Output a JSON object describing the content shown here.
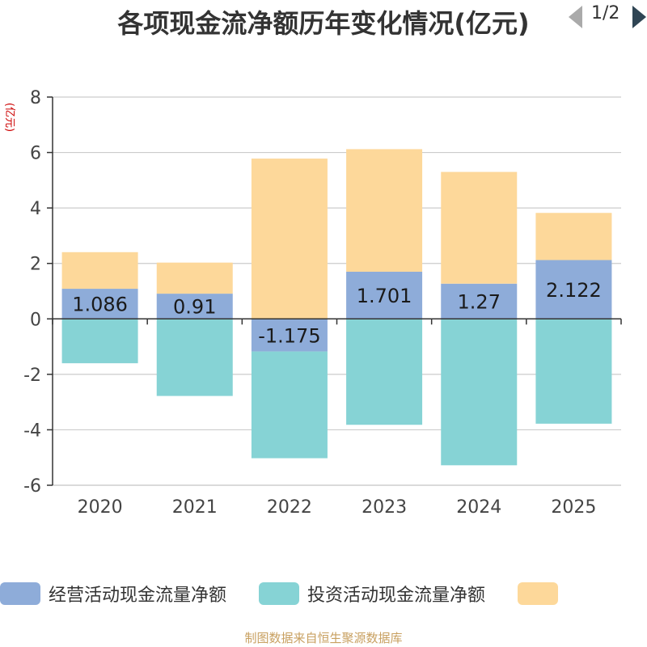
{
  "chart_data": {
    "type": "bar",
    "stacked": true,
    "title": "各项现金流净额历年变化情况(亿元)",
    "ylabel": "(亿元)",
    "xlabel": "",
    "ylim": [
      -6,
      8
    ],
    "yticks": [
      -6,
      -4,
      -2,
      0,
      2,
      4,
      6,
      8
    ],
    "categories": [
      "2020",
      "2021",
      "2022",
      "2023",
      "2024",
      "2025"
    ],
    "series": [
      {
        "name": "经营活动现金流量净额",
        "color": "#8eacd9",
        "values": [
          1.086,
          0.91,
          -1.175,
          1.701,
          1.27,
          2.122
        ],
        "labels": [
          "1.086",
          "0.91",
          "-1.175",
          "1.701",
          "1.27",
          "2.122"
        ]
      },
      {
        "name": "投资活动现金流量净额",
        "color": "#86d3d5",
        "values": [
          -1.6,
          -2.78,
          -3.85,
          -3.82,
          -5.28,
          -3.78
        ]
      },
      {
        "name": "",
        "color": "#fdd89a",
        "values": [
          1.32,
          1.12,
          5.78,
          4.42,
          4.03,
          1.7
        ]
      }
    ],
    "legend_position": "bottom",
    "legend_page": "1/2",
    "source": "制图数据来自恒生聚源数据库"
  }
}
